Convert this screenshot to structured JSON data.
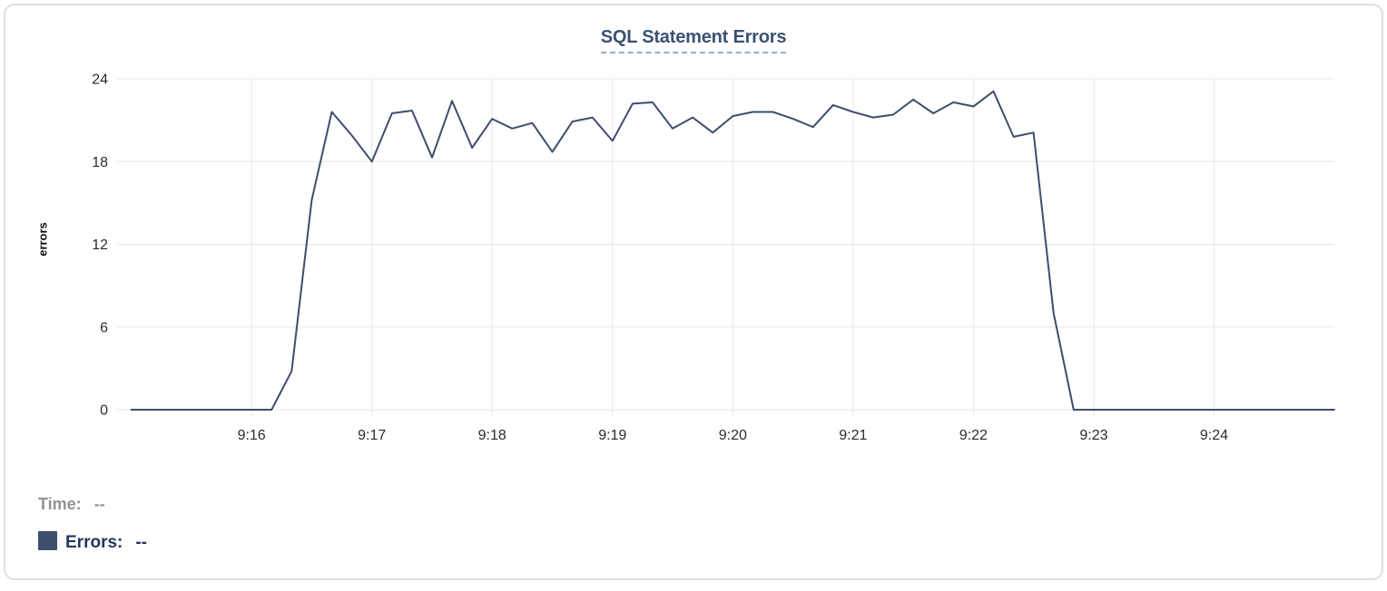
{
  "panel": {
    "title": "SQL Statement Errors"
  },
  "axes": {
    "y_label": "errors",
    "y_ticks": [
      24,
      18,
      12,
      6,
      0
    ],
    "x_ticks": [
      "9:16",
      "9:17",
      "9:18",
      "9:19",
      "9:20",
      "9:21",
      "9:22",
      "9:23",
      "9:24"
    ]
  },
  "legend": {
    "time_label": "Time:",
    "time_value": "--",
    "errors_label": "Errors:",
    "errors_value": "--"
  },
  "colors": {
    "series_line": "#3e4e6c",
    "series_swatch": "#3e4f6e",
    "title_text": "#3b5173",
    "title_dashes": "#9fadc4",
    "legend_time_text": "#8f9296",
    "legend_errors_text": "#24365e",
    "gridline": "#e7e7e7",
    "tick_text": "#2b2b2b",
    "panel_border": "#dcdfe3"
  },
  "chart_data": {
    "type": "line",
    "title": "SQL Statement Errors",
    "xlabel": "",
    "ylabel": "errors",
    "series_name": "Errors",
    "interval_seconds": 10,
    "x_range": [
      "9:15:00",
      "9:25:00"
    ],
    "ylim": [
      0,
      24
    ],
    "y_ticks": [
      0,
      6,
      12,
      18,
      24
    ],
    "x_tick_labels": [
      "9:16",
      "9:17",
      "9:18",
      "9:19",
      "9:20",
      "9:21",
      "9:22",
      "9:23",
      "9:24"
    ],
    "grid": true,
    "legend_position": "bottom-left",
    "x": [
      "9:15:00",
      "9:15:10",
      "9:15:20",
      "9:15:30",
      "9:15:40",
      "9:15:50",
      "9:16:00",
      "9:16:10",
      "9:16:20",
      "9:16:30",
      "9:16:40",
      "9:16:50",
      "9:17:00",
      "9:17:10",
      "9:17:20",
      "9:17:30",
      "9:17:40",
      "9:17:50",
      "9:18:00",
      "9:18:10",
      "9:18:20",
      "9:18:30",
      "9:18:40",
      "9:18:50",
      "9:19:00",
      "9:19:10",
      "9:19:20",
      "9:19:30",
      "9:19:40",
      "9:19:50",
      "9:20:00",
      "9:20:10",
      "9:20:20",
      "9:20:30",
      "9:20:40",
      "9:20:50",
      "9:21:00",
      "9:21:10",
      "9:21:20",
      "9:21:30",
      "9:21:40",
      "9:21:50",
      "9:22:00",
      "9:22:10",
      "9:22:20",
      "9:22:30",
      "9:22:40",
      "9:22:50",
      "9:23:00",
      "9:23:10",
      "9:23:20",
      "9:23:30",
      "9:23:40",
      "9:23:50",
      "9:24:00",
      "9:24:10",
      "9:24:20",
      "9:24:30",
      "9:24:40",
      "9:24:50",
      "9:25:00"
    ],
    "values": [
      0,
      0,
      0,
      0,
      0,
      0,
      0,
      0,
      2.8,
      15.2,
      21.6,
      19.9,
      18,
      21.5,
      21.7,
      18.3,
      22.4,
      19,
      21.1,
      20.4,
      20.8,
      18.7,
      20.9,
      21.2,
      19.5,
      22.2,
      22.3,
      20.4,
      21.2,
      20.1,
      21.3,
      21.6,
      21.6,
      21.1,
      20.5,
      22.1,
      21.6,
      21.2,
      21.4,
      22.5,
      21.5,
      22.3,
      22,
      23.1,
      19.8,
      20.1,
      7,
      0,
      0,
      0,
      0,
      0,
      0,
      0,
      0,
      0,
      0,
      0,
      0,
      0,
      0
    ]
  }
}
